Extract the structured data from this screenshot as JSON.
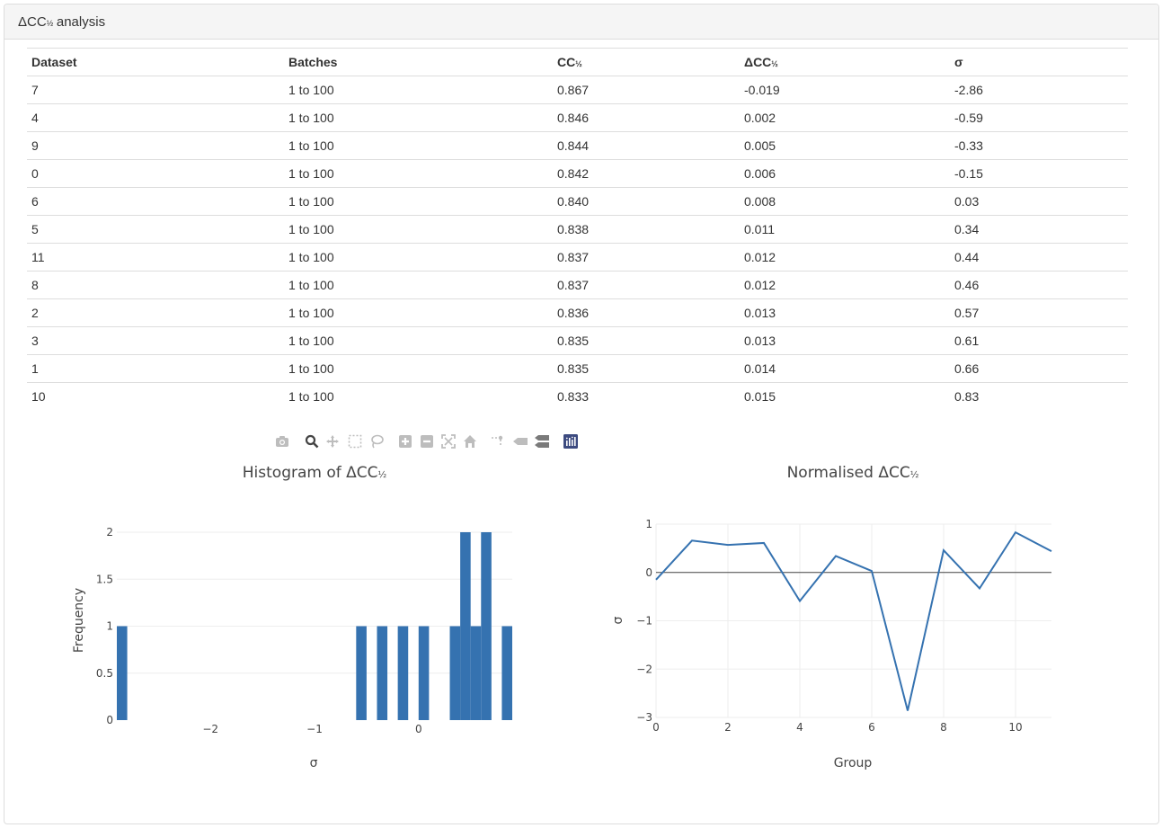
{
  "panel": {
    "title_main": "ΔCC",
    "title_half": "½",
    "title_rest": " analysis"
  },
  "table": {
    "headers": [
      {
        "main": "Dataset",
        "half": ""
      },
      {
        "main": "Batches",
        "half": ""
      },
      {
        "main": "CC",
        "half": "½"
      },
      {
        "main": "ΔCC",
        "half": "½"
      },
      {
        "main": "σ",
        "half": ""
      }
    ],
    "rows": [
      [
        "7",
        "1 to 100",
        "0.867",
        "-0.019",
        "-2.86"
      ],
      [
        "4",
        "1 to 100",
        "0.846",
        "0.002",
        "-0.59"
      ],
      [
        "9",
        "1 to 100",
        "0.844",
        "0.005",
        "-0.33"
      ],
      [
        "0",
        "1 to 100",
        "0.842",
        "0.006",
        "-0.15"
      ],
      [
        "6",
        "1 to 100",
        "0.840",
        "0.008",
        "0.03"
      ],
      [
        "5",
        "1 to 100",
        "0.838",
        "0.011",
        "0.34"
      ],
      [
        "11",
        "1 to 100",
        "0.837",
        "0.012",
        "0.44"
      ],
      [
        "8",
        "1 to 100",
        "0.837",
        "0.012",
        "0.46"
      ],
      [
        "2",
        "1 to 100",
        "0.836",
        "0.013",
        "0.57"
      ],
      [
        "3",
        "1 to 100",
        "0.835",
        "0.013",
        "0.61"
      ],
      [
        "1",
        "1 to 100",
        "0.835",
        "0.014",
        "0.66"
      ],
      [
        "10",
        "1 to 100",
        "0.833",
        "0.015",
        "0.83"
      ]
    ]
  },
  "modebar": {
    "icons": [
      "camera-icon",
      "zoom-icon",
      "pan-icon",
      "box-select-icon",
      "lasso-select-icon",
      "zoom-in-icon",
      "zoom-out-icon",
      "autoscale-icon",
      "reset-axes-icon",
      "spike-lines-icon",
      "hover-closest-icon",
      "hover-compare-icon",
      "plotly-logo-icon"
    ]
  },
  "colors": {
    "bar": "#3572b0",
    "line": "#3572b0",
    "grid": "#eeeeee",
    "zeroline": "#444444"
  },
  "chart_data": [
    {
      "type": "bar",
      "title_main": "Histogram of ΔCC",
      "title_half": "½",
      "xlabel": "σ",
      "ylabel": "Frequency",
      "xlim": [
        -2.9,
        0.9
      ],
      "ylim": [
        0,
        2
      ],
      "xticks": [
        -2,
        -1,
        0
      ],
      "xtick_labels": [
        "−2",
        "−1",
        "0"
      ],
      "yticks": [
        0,
        0.5,
        1,
        1.5,
        2
      ],
      "ytick_labels": [
        "0",
        "0.5",
        "1",
        "1.5",
        "2"
      ],
      "bin_width": 0.1,
      "bins": [
        {
          "x0": -2.9,
          "count": 1
        },
        {
          "x0": -0.6,
          "count": 1
        },
        {
          "x0": -0.4,
          "count": 1
        },
        {
          "x0": -0.2,
          "count": 1
        },
        {
          "x0": 0.0,
          "count": 1
        },
        {
          "x0": 0.3,
          "count": 1
        },
        {
          "x0": 0.4,
          "count": 2
        },
        {
          "x0": 0.5,
          "count": 1
        },
        {
          "x0": 0.6,
          "count": 2
        },
        {
          "x0": 0.8,
          "count": 1
        }
      ]
    },
    {
      "type": "line",
      "title_main": "Normalised ΔCC",
      "title_half": "½",
      "xlabel": "Group",
      "ylabel": "σ",
      "xlim": [
        0,
        11
      ],
      "ylim": [
        -3,
        1
      ],
      "xticks": [
        0,
        2,
        4,
        6,
        8,
        10
      ],
      "xtick_labels": [
        "0",
        "2",
        "4",
        "6",
        "8",
        "10"
      ],
      "yticks": [
        1,
        0,
        -1,
        -2,
        -3
      ],
      "ytick_labels": [
        "1",
        "0",
        "−1",
        "−2",
        "−3"
      ],
      "x": [
        0,
        1,
        2,
        3,
        4,
        5,
        6,
        7,
        8,
        9,
        10,
        11
      ],
      "y": [
        -0.15,
        0.66,
        0.57,
        0.61,
        -0.59,
        0.34,
        0.03,
        -2.86,
        0.46,
        -0.33,
        0.83,
        0.44
      ]
    }
  ]
}
